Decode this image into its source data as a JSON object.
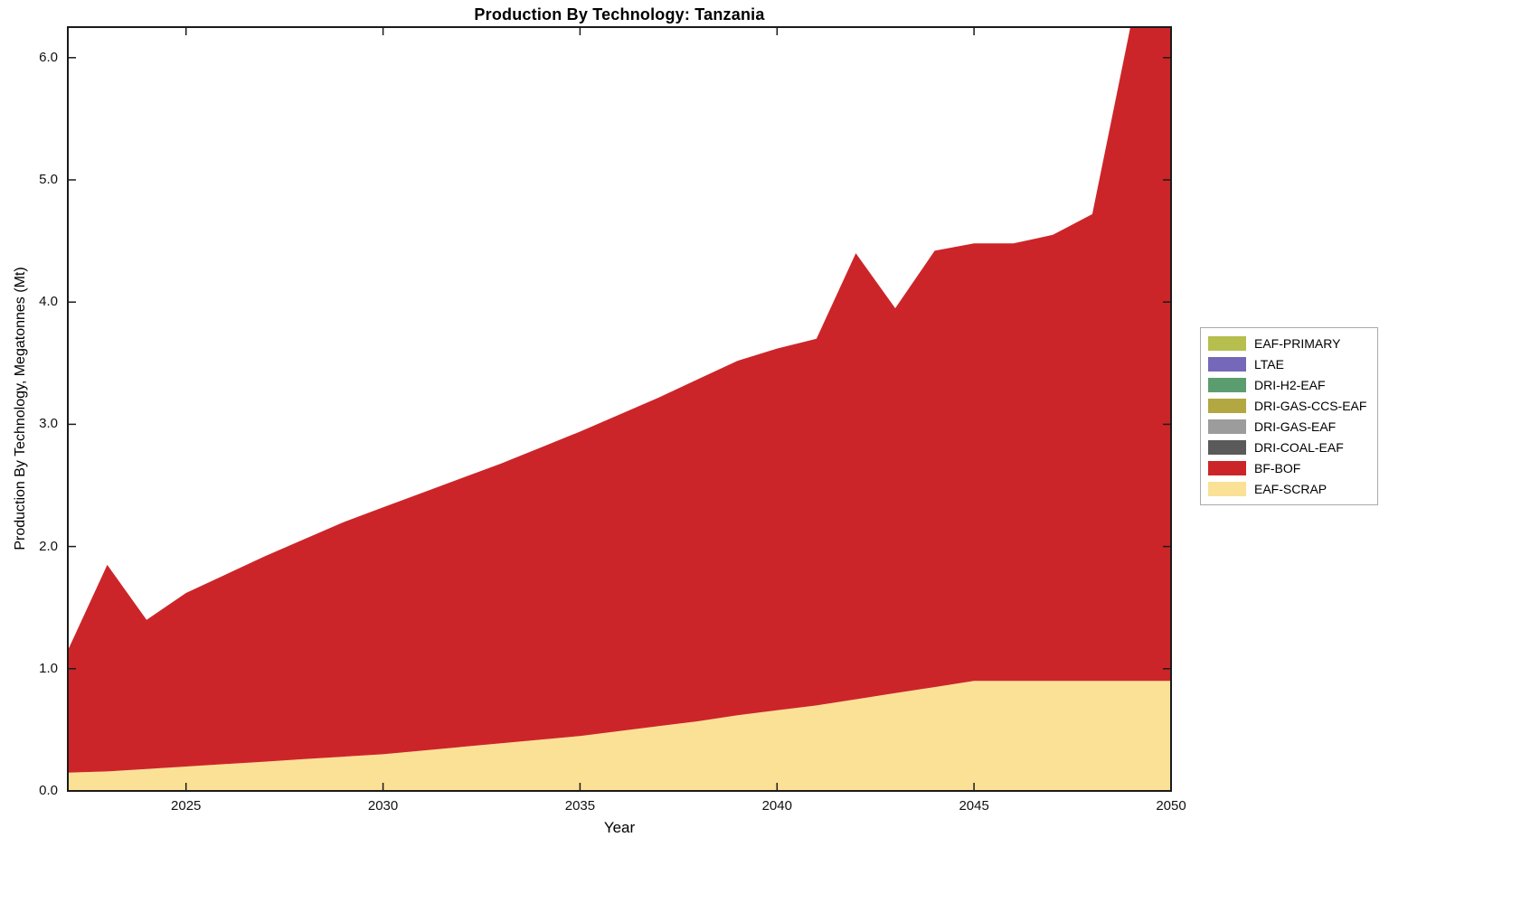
{
  "title": "Production By Technology: Tanzania",
  "xlabel": "Year",
  "ylabel": "Production By Technology, Megatonnes (Mt)",
  "chart_data": {
    "type": "area",
    "stacked": true,
    "title": "Production By Technology: Tanzania",
    "xlabel": "Year",
    "ylabel": "Production By Technology, Megatonnes (Mt)",
    "grid": false,
    "legend_position": "right-outside",
    "xlim": [
      2022,
      2050
    ],
    "ylim": [
      0,
      6.25
    ],
    "xticks": [
      2025,
      2030,
      2035,
      2040,
      2045,
      2050
    ],
    "xtick_labels": [
      "2025",
      "2030",
      "2035",
      "2040",
      "2045",
      "2050"
    ],
    "yticks": [
      0,
      1,
      2,
      3,
      4,
      5,
      6
    ],
    "ytick_labels": [
      "0.0",
      "1.0",
      "2.0",
      "3.0",
      "4.0",
      "5.0",
      "6.0"
    ],
    "x": [
      2022,
      2023,
      2024,
      2025,
      2026,
      2027,
      2028,
      2029,
      2030,
      2031,
      2032,
      2033,
      2034,
      2035,
      2036,
      2037,
      2038,
      2039,
      2040,
      2041,
      2042,
      2043,
      2044,
      2045,
      2046,
      2047,
      2048,
      2049,
      2050
    ],
    "series": [
      {
        "name": "EAF-SCRAP",
        "color": "#FBE196",
        "values": [
          0.15,
          0.16,
          0.18,
          0.2,
          0.22,
          0.24,
          0.26,
          0.28,
          0.3,
          0.33,
          0.36,
          0.39,
          0.42,
          0.45,
          0.49,
          0.53,
          0.57,
          0.62,
          0.66,
          0.7,
          0.75,
          0.8,
          0.85,
          0.9,
          0.9,
          0.9,
          0.9,
          0.9,
          0.9
        ]
      },
      {
        "name": "BF-BOF",
        "color": "#CC2529",
        "values": [
          1.0,
          1.69,
          1.22,
          1.42,
          1.55,
          1.68,
          1.8,
          1.92,
          2.02,
          2.11,
          2.2,
          2.29,
          2.39,
          2.49,
          2.59,
          2.69,
          2.8,
          2.9,
          2.96,
          3.0,
          3.65,
          3.15,
          3.57,
          3.58,
          3.58,
          3.65,
          3.82,
          5.4,
          5.7
        ]
      },
      {
        "name": "DRI-COAL-EAF",
        "color": "#5A5A5A",
        "values": [
          0,
          0,
          0,
          0,
          0,
          0,
          0,
          0,
          0,
          0,
          0,
          0,
          0,
          0,
          0,
          0,
          0,
          0,
          0,
          0,
          0,
          0,
          0,
          0,
          0,
          0,
          0,
          0,
          0
        ]
      },
      {
        "name": "DRI-GAS-EAF",
        "color": "#9C9C9C",
        "values": [
          0,
          0,
          0,
          0,
          0,
          0,
          0,
          0,
          0,
          0,
          0,
          0,
          0,
          0,
          0,
          0,
          0,
          0,
          0,
          0,
          0,
          0,
          0,
          0,
          0,
          0,
          0,
          0,
          0
        ]
      },
      {
        "name": "DRI-GAS-CCS-EAF",
        "color": "#B3A742",
        "values": [
          0,
          0,
          0,
          0,
          0,
          0,
          0,
          0,
          0,
          0,
          0,
          0,
          0,
          0,
          0,
          0,
          0,
          0,
          0,
          0,
          0,
          0,
          0,
          0,
          0,
          0,
          0,
          0,
          0
        ]
      },
      {
        "name": "DRI-H2-EAF",
        "color": "#5C9D6F",
        "values": [
          0,
          0,
          0,
          0,
          0,
          0,
          0,
          0,
          0,
          0,
          0,
          0,
          0,
          0,
          0,
          0,
          0,
          0,
          0,
          0,
          0,
          0,
          0,
          0,
          0,
          0,
          0,
          0,
          0
        ]
      },
      {
        "name": "LTAE",
        "color": "#7568B8",
        "values": [
          0,
          0,
          0,
          0,
          0,
          0,
          0,
          0,
          0,
          0,
          0,
          0,
          0,
          0,
          0,
          0,
          0,
          0,
          0,
          0,
          0,
          0,
          0,
          0,
          0,
          0,
          0,
          0,
          0
        ]
      },
      {
        "name": "EAF-PRIMARY",
        "color": "#B6BE4E",
        "values": [
          0,
          0,
          0,
          0,
          0,
          0,
          0,
          0,
          0,
          0,
          0,
          0,
          0,
          0,
          0,
          0,
          0,
          0,
          0,
          0,
          0,
          0,
          0,
          0,
          0,
          0,
          0,
          0,
          0
        ]
      }
    ]
  }
}
